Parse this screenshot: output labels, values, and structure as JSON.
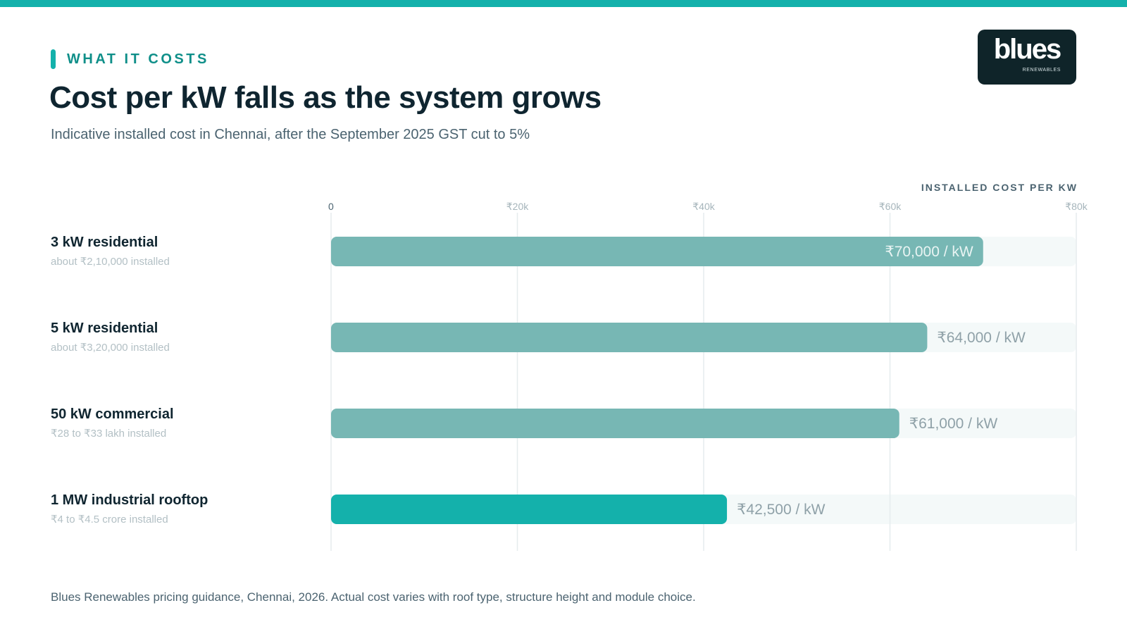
{
  "header": {
    "eyebrow": "WHAT IT COSTS",
    "title": "Cost per kW falls as the system grows",
    "subtitle": "Indicative installed cost in Chennai, after the September 2025 GST cut to 5%"
  },
  "logo": {
    "wordmark": "blues",
    "tagline": "RENEWABLES"
  },
  "footnote": "Blues Renewables pricing guidance, Chennai, 2026. Actual cost varies with roof type, structure height and module choice.",
  "colors": {
    "accent": "#14b1ab",
    "bar": "#77b7b4",
    "bar_highlight": "#14b1ab",
    "track": "#f4f9f9",
    "grid": "#e6ecee",
    "ink": "#0f2530"
  },
  "chart_data": {
    "type": "bar",
    "orientation": "horizontal",
    "xlabel": "INSTALLED COST PER KW",
    "xlim": [
      0,
      80000
    ],
    "xticks": [
      0,
      20000,
      40000,
      60000,
      80000
    ],
    "xtick_labels": [
      "0",
      "₹20k",
      "₹40k",
      "₹60k",
      "₹80k"
    ],
    "grid": true,
    "categories": [
      "3 kW residential",
      "5 kW residential",
      "50 kW commercial",
      "1 MW industrial rooftop"
    ],
    "details": [
      "about ₹2,10,000 installed",
      "about ₹3,20,000 installed",
      "₹28 to ₹33 lakh installed",
      "₹4 to ₹4.5 crore installed"
    ],
    "values": [
      70000,
      64000,
      61000,
      42500
    ],
    "value_labels": [
      "₹70,000 / kW",
      "₹64,000 / kW",
      "₹61,000 / kW",
      "₹42,500 / kW"
    ],
    "highlighted": [
      false,
      false,
      false,
      true
    ]
  }
}
